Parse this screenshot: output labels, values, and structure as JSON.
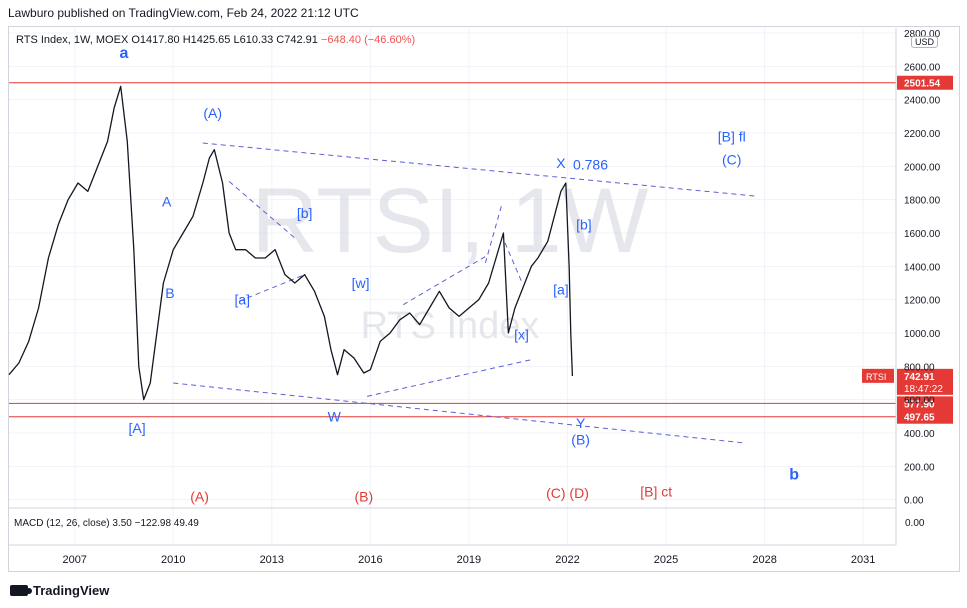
{
  "publisher_line": "Lawburo published on TradingView.com, Feb 24, 2022 21:12 UTC",
  "symbol": {
    "text": "RTS Index, 1W, MOEX  O1417.80  H1425.65  L610.33  C742.91",
    "change": "−648.40 (−46.60%)"
  },
  "currency_badge": "USD",
  "watermark": {
    "ticker": "RTSI, 1W",
    "name": "RTS Index"
  },
  "footer_logo": "TradingView",
  "macd_label": "MACD (12, 26, close)  3.50  −122.98  49.49",
  "colors": {
    "candle": "#131722",
    "wave_blue": "#2962ff",
    "wave_red": "#e53935",
    "level_line": "#e53935",
    "dashed": "#5b5fd6",
    "price_tag_red": "#e53935"
  },
  "chart_data": {
    "type": "line",
    "title": "RTS Index, 1W, MOEX",
    "xlabel": "",
    "ylabel": "",
    "xlim": [
      2005.0,
      2032.0
    ],
    "ylim": [
      -50,
      2830
    ],
    "x_ticks": [
      2007,
      2010,
      2013,
      2016,
      2019,
      2022,
      2025,
      2028,
      2031
    ],
    "x_tick_labels": [
      "2007",
      "2010",
      "2013",
      "2016",
      "2019",
      "2022",
      "2025",
      "2028",
      "2031"
    ],
    "y_ticks": [
      0,
      200,
      400,
      600,
      800,
      1000,
      1200,
      1400,
      1600,
      1800,
      2000,
      2200,
      2400,
      2600,
      2800
    ],
    "y_tick_labels": [
      "0.00",
      "200.00",
      "400.00",
      "600.00",
      "800.00",
      "1000.00",
      "1200.00",
      "1400.00",
      "1600.00",
      "1800.00",
      "2000.00",
      "2200.00",
      "2400.00",
      "2600.00",
      "2800.00"
    ],
    "series": [
      {
        "name": "RTS Index",
        "x": [
          2005.0,
          2005.3,
          2005.6,
          2005.9,
          2006.2,
          2006.5,
          2006.8,
          2007.1,
          2007.4,
          2007.7,
          2008.0,
          2008.2,
          2008.4,
          2008.6,
          2008.8,
          2008.95,
          2009.1,
          2009.3,
          2009.5,
          2009.7,
          2010.0,
          2010.3,
          2010.6,
          2010.9,
          2011.1,
          2011.25,
          2011.5,
          2011.7,
          2011.9,
          2012.2,
          2012.5,
          2012.8,
          2013.1,
          2013.4,
          2013.7,
          2014.0,
          2014.3,
          2014.6,
          2014.8,
          2015.0,
          2015.2,
          2015.5,
          2015.8,
          2016.0,
          2016.3,
          2016.6,
          2016.9,
          2017.2,
          2017.5,
          2017.8,
          2018.1,
          2018.4,
          2018.7,
          2019.0,
          2019.3,
          2019.6,
          2019.9,
          2020.05,
          2020.2,
          2020.4,
          2020.6,
          2020.9,
          2021.1,
          2021.4,
          2021.6,
          2021.8,
          2021.95,
          2022.05,
          2022.1,
          2022.15
        ],
        "y": [
          750,
          820,
          950,
          1150,
          1450,
          1650,
          1800,
          1900,
          1850,
          2000,
          2150,
          2350,
          2480,
          2150,
          1500,
          800,
          600,
          700,
          1000,
          1300,
          1500,
          1600,
          1700,
          1900,
          2050,
          2100,
          1900,
          1600,
          1500,
          1500,
          1450,
          1450,
          1500,
          1350,
          1300,
          1350,
          1250,
          1100,
          900,
          750,
          900,
          850,
          760,
          780,
          950,
          1000,
          1080,
          1120,
          1050,
          1150,
          1250,
          1150,
          1100,
          1150,
          1200,
          1300,
          1500,
          1600,
          1000,
          1150,
          1250,
          1400,
          1450,
          1550,
          1700,
          1850,
          1900,
          1400,
          1000,
          742
        ]
      }
    ],
    "levels": [
      {
        "label": "2501.54",
        "value": 2501.54
      },
      {
        "label": "577.90",
        "value": 577.9
      },
      {
        "label": "497.65",
        "value": 497.65
      }
    ],
    "current_price": {
      "symbol": "RTSI",
      "value": "742.91",
      "countdown": "18:47:22"
    },
    "wave_labels_blue": [
      {
        "text": "a",
        "x": 2008.5,
        "y": 2650
      },
      {
        "text": "(A)",
        "x": 2011.2,
        "y": 2290
      },
      {
        "text": "A",
        "x": 2009.8,
        "y": 1760
      },
      {
        "text": "B",
        "x": 2009.9,
        "y": 1210
      },
      {
        "text": "[a]",
        "x": 2012.1,
        "y": 1170
      },
      {
        "text": "[b]",
        "x": 2014.0,
        "y": 1690
      },
      {
        "text": "[w]",
        "x": 2015.7,
        "y": 1270
      },
      {
        "text": "W",
        "x": 2014.9,
        "y": 470
      },
      {
        "text": "[A]",
        "x": 2008.9,
        "y": 400
      },
      {
        "text": "[x]",
        "x": 2020.6,
        "y": 960
      },
      {
        "text": "X",
        "x": 2021.8,
        "y": 1990
      },
      {
        "text": "0.786",
        "x": 2022.7,
        "y": 1980
      },
      {
        "text": "[b]",
        "x": 2022.5,
        "y": 1620
      },
      {
        "text": "[a]",
        "x": 2021.8,
        "y": 1230
      },
      {
        "text": "Y",
        "x": 2022.4,
        "y": 430
      },
      {
        "text": "(B)",
        "x": 2022.4,
        "y": 330
      },
      {
        "text": "[B] fl",
        "x": 2027.0,
        "y": 2150
      },
      {
        "text": "(C)",
        "x": 2027.0,
        "y": 2010
      },
      {
        "text": "b",
        "x": 2028.9,
        "y": 120
      }
    ],
    "wave_labels_red": [
      {
        "text": "(A)",
        "x": 2010.8,
        "y": -10
      },
      {
        "text": "(B)",
        "x": 2015.8,
        "y": -10
      },
      {
        "text": "(C) (D)",
        "x": 2022.0,
        "y": 10
      },
      {
        "text": "[B] ct",
        "x": 2024.7,
        "y": 20
      }
    ],
    "trendlines": [
      {
        "x1": 2010.9,
        "y1": 2140,
        "x2": 2027.8,
        "y2": 1820
      },
      {
        "x1": 2010.0,
        "y1": 700,
        "x2": 2027.4,
        "y2": 340
      },
      {
        "x1": 2011.7,
        "y1": 1910,
        "x2": 2013.7,
        "y2": 1570
      },
      {
        "x1": 2012.0,
        "y1": 1190,
        "x2": 2014.0,
        "y2": 1350
      },
      {
        "x1": 2015.9,
        "y1": 620,
        "x2": 2020.9,
        "y2": 840
      },
      {
        "x1": 2017.0,
        "y1": 1170,
        "x2": 2019.6,
        "y2": 1470
      },
      {
        "x1": 2019.5,
        "y1": 1420,
        "x2": 2020.0,
        "y2": 1770
      },
      {
        "x1": 2020.1,
        "y1": 1540,
        "x2": 2020.6,
        "y2": 1310
      }
    ],
    "grid": true,
    "legend": "none"
  }
}
